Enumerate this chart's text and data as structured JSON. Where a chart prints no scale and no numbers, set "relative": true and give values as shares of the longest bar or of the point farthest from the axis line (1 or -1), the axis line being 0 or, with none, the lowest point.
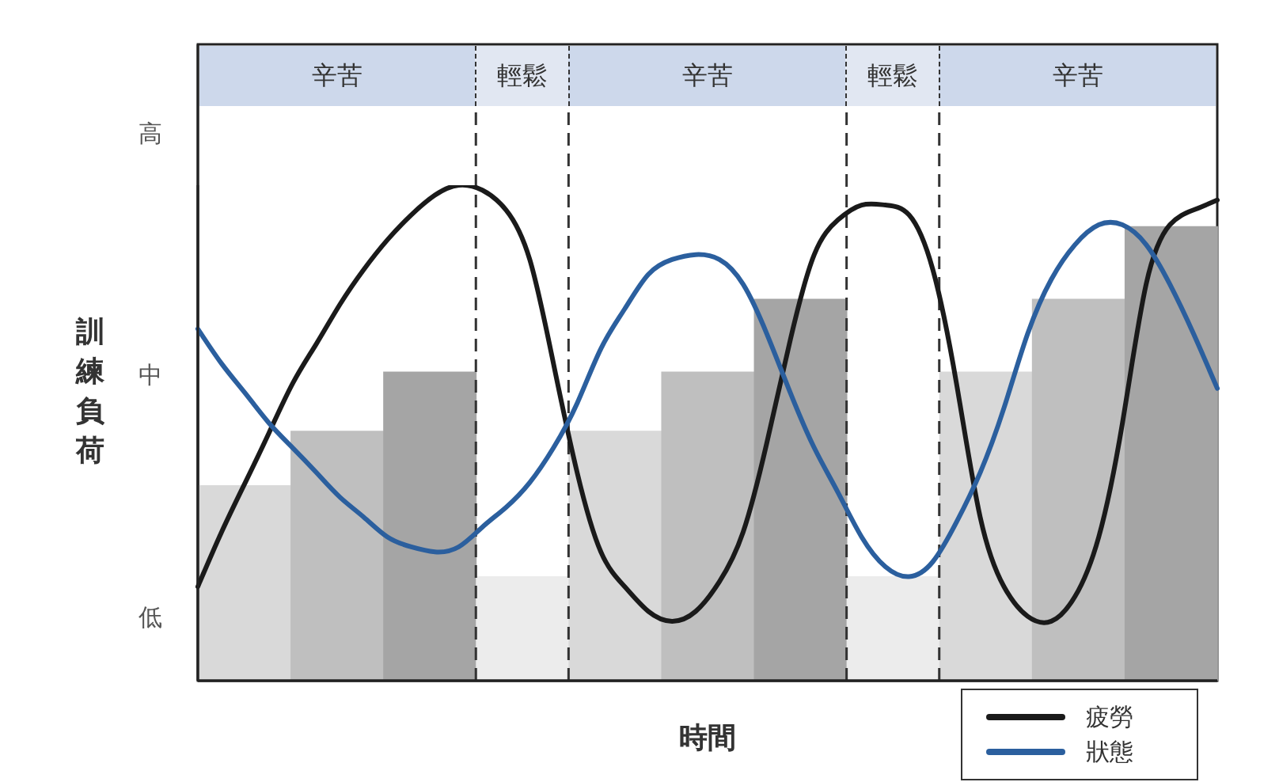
{
  "chart_data": [
    {
      "type": "bar",
      "relative": true,
      "xlabel": "時間",
      "ylabel": "訓練負荷",
      "categories": [
        null,
        null,
        null,
        null,
        null,
        null,
        null,
        null,
        null,
        null,
        null
      ],
      "values": [
        0.43,
        0.55,
        0.68,
        0.23,
        0.55,
        0.68,
        0.84,
        0.23,
        0.68,
        0.84,
        1
      ],
      "colors": [
        "#d9d9d9",
        "#bfbfbf",
        "#a5a5a5",
        "#ececec",
        "#d9d9d9",
        "#bfbfbf",
        "#a5a5a5",
        "#ececec",
        "#d9d9d9",
        "#bfbfbf",
        "#a5a5a5"
      ],
      "annotations": [
        "高",
        "中",
        "低"
      ]
    },
    {
      "type": "line",
      "relative": true,
      "marker": "none",
      "legend": "bottom right",
      "categories": [
        null,
        null,
        null,
        null,
        null,
        null,
        null,
        null,
        null,
        null,
        null,
        null,
        null,
        null,
        null,
        null,
        null,
        null,
        null,
        null,
        null,
        null,
        null,
        null,
        null,
        null,
        null,
        null,
        null,
        null,
        null,
        null,
        null,
        null,
        null,
        null,
        null,
        null,
        null,
        null,
        null,
        null,
        null,
        null
      ],
      "series": [
        {
          "name": "疲勞",
          "color": "#1a1a1a",
          "values": [
            0.19,
            0.3,
            0.4,
            0.5,
            0.6,
            0.68,
            0.76,
            0.83,
            0.89,
            0.94,
            0.98,
            1,
            0.99,
            0.95,
            0.85,
            0.64,
            0.42,
            0.26,
            0.19,
            0.14,
            0.12,
            0.14,
            0.2,
            0.3,
            0.48,
            0.69,
            0.86,
            0.93,
            0.96,
            0.96,
            0.94,
            0.83,
            0.6,
            0.33,
            0.19,
            0.13,
            0.12,
            0.17,
            0.29,
            0.52,
            0.8,
            0.92,
            0.95,
            0.97
          ]
        },
        {
          "name": "狀態",
          "color": "#2b5f9e",
          "values": [
            0.71,
            0.64,
            0.58,
            0.52,
            0.47,
            0.42,
            0.37,
            0.33,
            0.29,
            0.27,
            0.26,
            0.27,
            0.31,
            0.35,
            0.4,
            0.47,
            0.56,
            0.67,
            0.75,
            0.82,
            0.85,
            0.86,
            0.85,
            0.8,
            0.7,
            0.58,
            0.47,
            0.38,
            0.29,
            0.23,
            0.21,
            0.24,
            0.32,
            0.42,
            0.55,
            0.7,
            0.81,
            0.88,
            0.92,
            0.92,
            0.88,
            0.8,
            0.7,
            0.59
          ]
        }
      ]
    },
    {
      "type": "other",
      "annotations": [
        "辛苦",
        "輕鬆",
        "辛苦",
        "輕鬆",
        "辛苦"
      ]
    }
  ]
}
